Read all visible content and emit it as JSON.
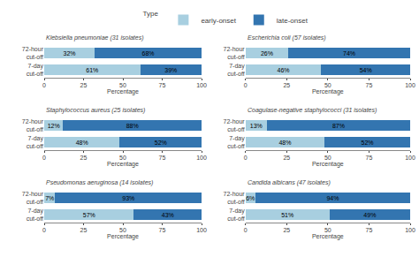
{
  "chart_data": [
    {
      "type": "bar",
      "orientation": "horizontal",
      "stacked": true,
      "data_labels": true,
      "grid": false,
      "legend": "top",
      "legend_title": "Type",
      "title": "Klebsiella pneumoniae (31 isolates)",
      "categories": [
        "72-hour\ncut-off",
        "7-day\ncut-off"
      ],
      "series": [
        {
          "name": "early-onset",
          "color": "#a8cfe0",
          "values": [
            32,
            61
          ],
          "value_labels": [
            "32%",
            "61%"
          ]
        },
        {
          "name": "late-onset",
          "color": "#3375b0",
          "values": [
            68,
            39
          ],
          "value_labels": [
            "68%",
            "39%"
          ]
        }
      ],
      "x_label": "Percentage",
      "xlim": [
        0,
        100
      ],
      "xticks": [
        0,
        25,
        50,
        75,
        100
      ]
    },
    {
      "type": "bar",
      "orientation": "horizontal",
      "stacked": true,
      "data_labels": true,
      "grid": false,
      "title": "Escherichia coli (57 isolates)",
      "categories": [
        "72-hour\ncut-off",
        "7-day\ncut-off"
      ],
      "series": [
        {
          "name": "early-onset",
          "color": "#a8cfe0",
          "values": [
            26,
            46
          ],
          "value_labels": [
            "26%",
            "46%"
          ]
        },
        {
          "name": "late-onset",
          "color": "#3375b0",
          "values": [
            74,
            54
          ],
          "value_labels": [
            "74%",
            "54%"
          ]
        }
      ],
      "x_label": "Percentage",
      "xlim": [
        0,
        100
      ],
      "xticks": [
        0,
        25,
        50,
        75,
        100
      ]
    },
    {
      "type": "bar",
      "orientation": "horizontal",
      "stacked": true,
      "data_labels": true,
      "grid": false,
      "title": "Staphylococcus aureus (25 isolates)",
      "categories": [
        "72-hour\ncut-off",
        "7-day\ncut-off"
      ],
      "series": [
        {
          "name": "early-onset",
          "color": "#a8cfe0",
          "values": [
            12,
            48
          ],
          "value_labels": [
            "12%",
            "48%"
          ]
        },
        {
          "name": "late-onset",
          "color": "#3375b0",
          "values": [
            88,
            52
          ],
          "value_labels": [
            "88%",
            "52%"
          ]
        }
      ],
      "x_label": "Percentage",
      "xlim": [
        0,
        100
      ],
      "xticks": [
        0,
        25,
        50,
        75,
        100
      ]
    },
    {
      "type": "bar",
      "orientation": "horizontal",
      "stacked": true,
      "data_labels": true,
      "grid": false,
      "title": "Coagulase-negative staphylococci (31 isolates)",
      "categories": [
        "72-hour\ncut-off",
        "7-day\ncut-off"
      ],
      "series": [
        {
          "name": "early-onset",
          "color": "#a8cfe0",
          "values": [
            13,
            48
          ],
          "value_labels": [
            "13%",
            "48%"
          ]
        },
        {
          "name": "late-onset",
          "color": "#3375b0",
          "values": [
            87,
            52
          ],
          "value_labels": [
            "87%",
            "52%"
          ]
        }
      ],
      "x_label": "Percentage",
      "xlim": [
        0,
        100
      ],
      "xticks": [
        0,
        25,
        50,
        75,
        100
      ]
    },
    {
      "type": "bar",
      "orientation": "horizontal",
      "stacked": true,
      "data_labels": true,
      "grid": false,
      "title": "Pseudomonas aeruginosa (14 isolates)",
      "categories": [
        "72-hour\ncut-off",
        "7-day\ncut-off"
      ],
      "series": [
        {
          "name": "early-onset",
          "color": "#a8cfe0",
          "values": [
            7,
            57
          ],
          "value_labels": [
            "7%",
            "57%"
          ]
        },
        {
          "name": "late-onset",
          "color": "#3375b0",
          "values": [
            93,
            43
          ],
          "value_labels": [
            "93%",
            "43%"
          ]
        }
      ],
      "x_label": "Percentage",
      "xlim": [
        0,
        100
      ],
      "xticks": [
        0,
        25,
        50,
        75,
        100
      ]
    },
    {
      "type": "bar",
      "orientation": "horizontal",
      "stacked": true,
      "data_labels": true,
      "grid": false,
      "title": "Candida albicans (47 isolates)",
      "categories": [
        "72-hour\ncut-off",
        "7-day\ncut-off"
      ],
      "series": [
        {
          "name": "early-onset",
          "color": "#a8cfe0",
          "values": [
            6,
            51
          ],
          "value_labels": [
            "6%",
            "51%"
          ]
        },
        {
          "name": "late-onset",
          "color": "#3375b0",
          "values": [
            94,
            49
          ],
          "value_labels": [
            "94%",
            "49%"
          ]
        }
      ],
      "x_label": "Percentage",
      "xlim": [
        0,
        100
      ],
      "xticks": [
        0,
        25,
        50,
        75,
        100
      ]
    }
  ]
}
